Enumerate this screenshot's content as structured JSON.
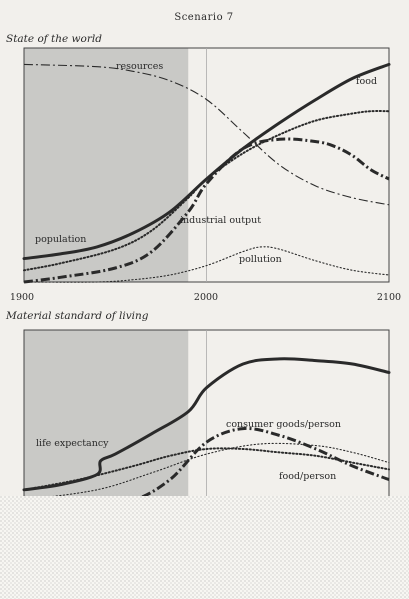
{
  "title": "Scenario 7",
  "chart_data": [
    {
      "type": "line",
      "title": "State of the world",
      "xlim": [
        1900,
        2100
      ],
      "shaded_region": [
        1900,
        1990
      ],
      "reference_line_x": 2000,
      "ticks": [
        {
          "value": 1900,
          "label": "1900"
        },
        {
          "value": 2000,
          "label": "2000"
        },
        {
          "value": 2100,
          "label": "2100"
        }
      ],
      "series": [
        {
          "name": "resources",
          "style": "dash-dot",
          "weight": "thin",
          "x": [
            1900,
            1940,
            1960,
            1980,
            2000,
            2020,
            2040,
            2060,
            2080,
            2100
          ],
          "y": [
            0.93,
            0.92,
            0.9,
            0.86,
            0.78,
            0.64,
            0.5,
            0.41,
            0.36,
            0.33
          ]
        },
        {
          "name": "food",
          "style": "dotted",
          "weight": "medium",
          "x": [
            1900,
            1920,
            1950,
            1970,
            1990,
            2000,
            2020,
            2040,
            2060,
            2080,
            2090,
            2100
          ],
          "y": [
            0.05,
            0.08,
            0.14,
            0.22,
            0.36,
            0.44,
            0.55,
            0.63,
            0.69,
            0.72,
            0.73,
            0.73
          ]
        },
        {
          "name": "industrial output",
          "style": "dash-dot",
          "weight": "heavy",
          "x": [
            1900,
            1920,
            1950,
            1970,
            1990,
            2000,
            2020,
            2040,
            2060,
            2070,
            2080,
            2090,
            2100
          ],
          "y": [
            0.0,
            0.02,
            0.06,
            0.13,
            0.3,
            0.42,
            0.57,
            0.61,
            0.6,
            0.58,
            0.54,
            0.48,
            0.44
          ]
        },
        {
          "name": "population",
          "style": "solid",
          "weight": "heavy",
          "x": [
            1900,
            1920,
            1940,
            1960,
            1980,
            2000,
            2020,
            2040,
            2060,
            2080,
            2100
          ],
          "y": [
            0.1,
            0.12,
            0.15,
            0.21,
            0.3,
            0.44,
            0.57,
            0.68,
            0.78,
            0.87,
            0.93
          ]
        },
        {
          "name": "pollution",
          "style": "dotted",
          "weight": "thin",
          "x": [
            1900,
            1940,
            1960,
            1980,
            2000,
            2020,
            2030,
            2040,
            2060,
            2080,
            2100
          ],
          "y": [
            0.0,
            0.0,
            0.01,
            0.03,
            0.07,
            0.13,
            0.15,
            0.14,
            0.09,
            0.05,
            0.03
          ]
        }
      ]
    },
    {
      "type": "line",
      "title": "Material standard of living",
      "xlim": [
        1900,
        2100
      ],
      "shaded_region": [
        1900,
        1990
      ],
      "reference_line_x": 2000,
      "series": [
        {
          "name": "life expectancy",
          "style": "solid",
          "weight": "heavy",
          "x": [
            1900,
            1920,
            1940,
            1942,
            1950,
            1970,
            1990,
            2000,
            2020,
            2040,
            2060,
            2080,
            2100
          ],
          "y": [
            0.06,
            0.09,
            0.15,
            0.23,
            0.27,
            0.39,
            0.52,
            0.66,
            0.8,
            0.83,
            0.82,
            0.8,
            0.75
          ]
        },
        {
          "name": "consumer goods/person",
          "style": "dash-dot",
          "weight": "heavy",
          "x": [
            1900,
            1940,
            1960,
            1980,
            2000,
            2020,
            2040,
            2060,
            2080,
            2100
          ],
          "y": [
            -0.1,
            -0.06,
            0.0,
            0.12,
            0.34,
            0.42,
            0.38,
            0.3,
            0.2,
            0.12
          ]
        },
        {
          "name": "food/person",
          "style": "dotted",
          "weight": "medium",
          "x": [
            1900,
            1930,
            1960,
            1980,
            2000,
            2020,
            2040,
            2060,
            2080,
            2100
          ],
          "y": [
            0.06,
            0.12,
            0.2,
            0.26,
            0.3,
            0.3,
            0.28,
            0.26,
            0.22,
            0.18
          ]
        },
        {
          "name": "",
          "style": "dotted",
          "weight": "thin",
          "x": [
            1900,
            1940,
            1970,
            2000,
            2030,
            2060,
            2080,
            2100
          ],
          "y": [
            0.0,
            0.06,
            0.16,
            0.27,
            0.33,
            0.32,
            0.28,
            0.22
          ]
        }
      ]
    }
  ]
}
